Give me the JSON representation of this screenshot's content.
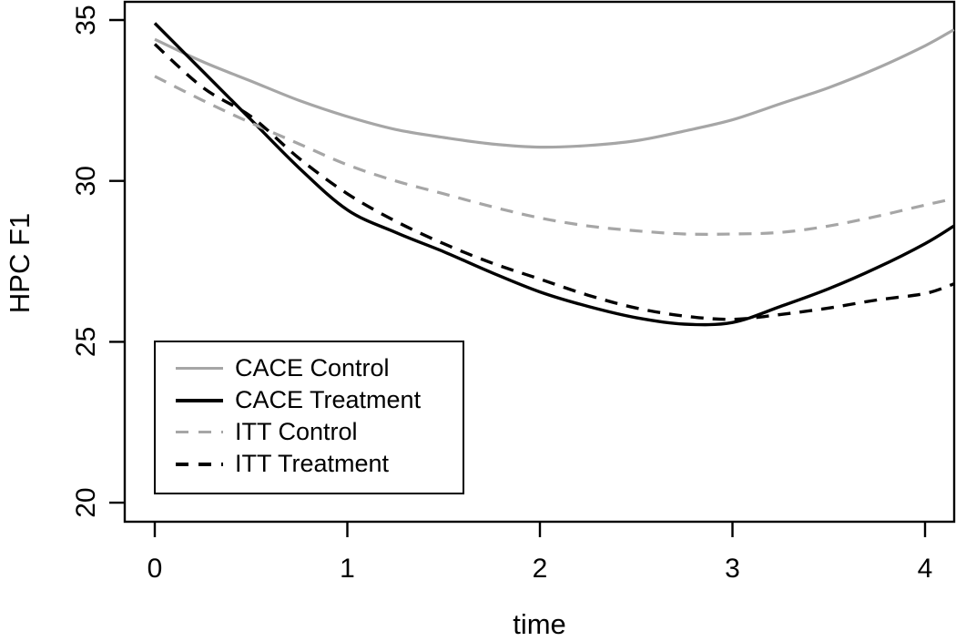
{
  "chart_data": {
    "type": "line",
    "title": "",
    "xlabel": "time",
    "ylabel": "HPC F1",
    "xlim": [
      -0.16,
      4.16
    ],
    "ylim": [
      19.4,
      35.6
    ],
    "x_ticks": [
      "0",
      "1",
      "2",
      "3",
      "4"
    ],
    "x_tick_values": [
      0,
      1,
      2,
      3,
      4
    ],
    "y_ticks": [
      "20",
      "25",
      "30",
      "35"
    ],
    "y_tick_values": [
      20,
      25,
      30,
      35
    ],
    "grid": false,
    "legend_position": "inside-bottom-left",
    "x": [
      0,
      0.25,
      0.5,
      0.75,
      1,
      1.25,
      1.5,
      1.75,
      2,
      2.25,
      2.5,
      2.75,
      3,
      3.25,
      3.5,
      3.75,
      4,
      4.15
    ],
    "series": [
      {
        "name": "CACE Control",
        "color": "#a6a6a6",
        "style": "solid",
        "values": [
          34.4,
          33.7,
          33.1,
          32.5,
          32.0,
          31.6,
          31.35,
          31.15,
          31.05,
          31.1,
          31.25,
          31.55,
          31.9,
          32.4,
          32.9,
          33.5,
          34.2,
          34.7
        ]
      },
      {
        "name": "CACE Treatment",
        "color": "#000000",
        "style": "solid",
        "values": [
          34.9,
          33.4,
          31.9,
          30.4,
          29.1,
          28.4,
          27.8,
          27.15,
          26.55,
          26.1,
          25.75,
          25.55,
          25.6,
          26.1,
          26.65,
          27.3,
          28.05,
          28.6
        ]
      },
      {
        "name": "ITT Control",
        "color": "#a6a6a6",
        "style": "dashed",
        "values": [
          33.25,
          32.5,
          31.8,
          31.15,
          30.5,
          30.0,
          29.6,
          29.2,
          28.85,
          28.6,
          28.45,
          28.35,
          28.35,
          28.4,
          28.6,
          28.9,
          29.25,
          29.45
        ]
      },
      {
        "name": "ITT Treatment",
        "color": "#000000",
        "style": "dashed",
        "values": [
          34.25,
          32.9,
          32.0,
          30.7,
          29.6,
          28.75,
          28.05,
          27.45,
          26.95,
          26.45,
          26.05,
          25.8,
          25.7,
          25.85,
          26.05,
          26.3,
          26.5,
          26.8
        ]
      }
    ]
  },
  "colors": {
    "background": "#ffffff",
    "axis": "#000000",
    "gray_series": "#a6a6a6",
    "black_series": "#000000"
  }
}
